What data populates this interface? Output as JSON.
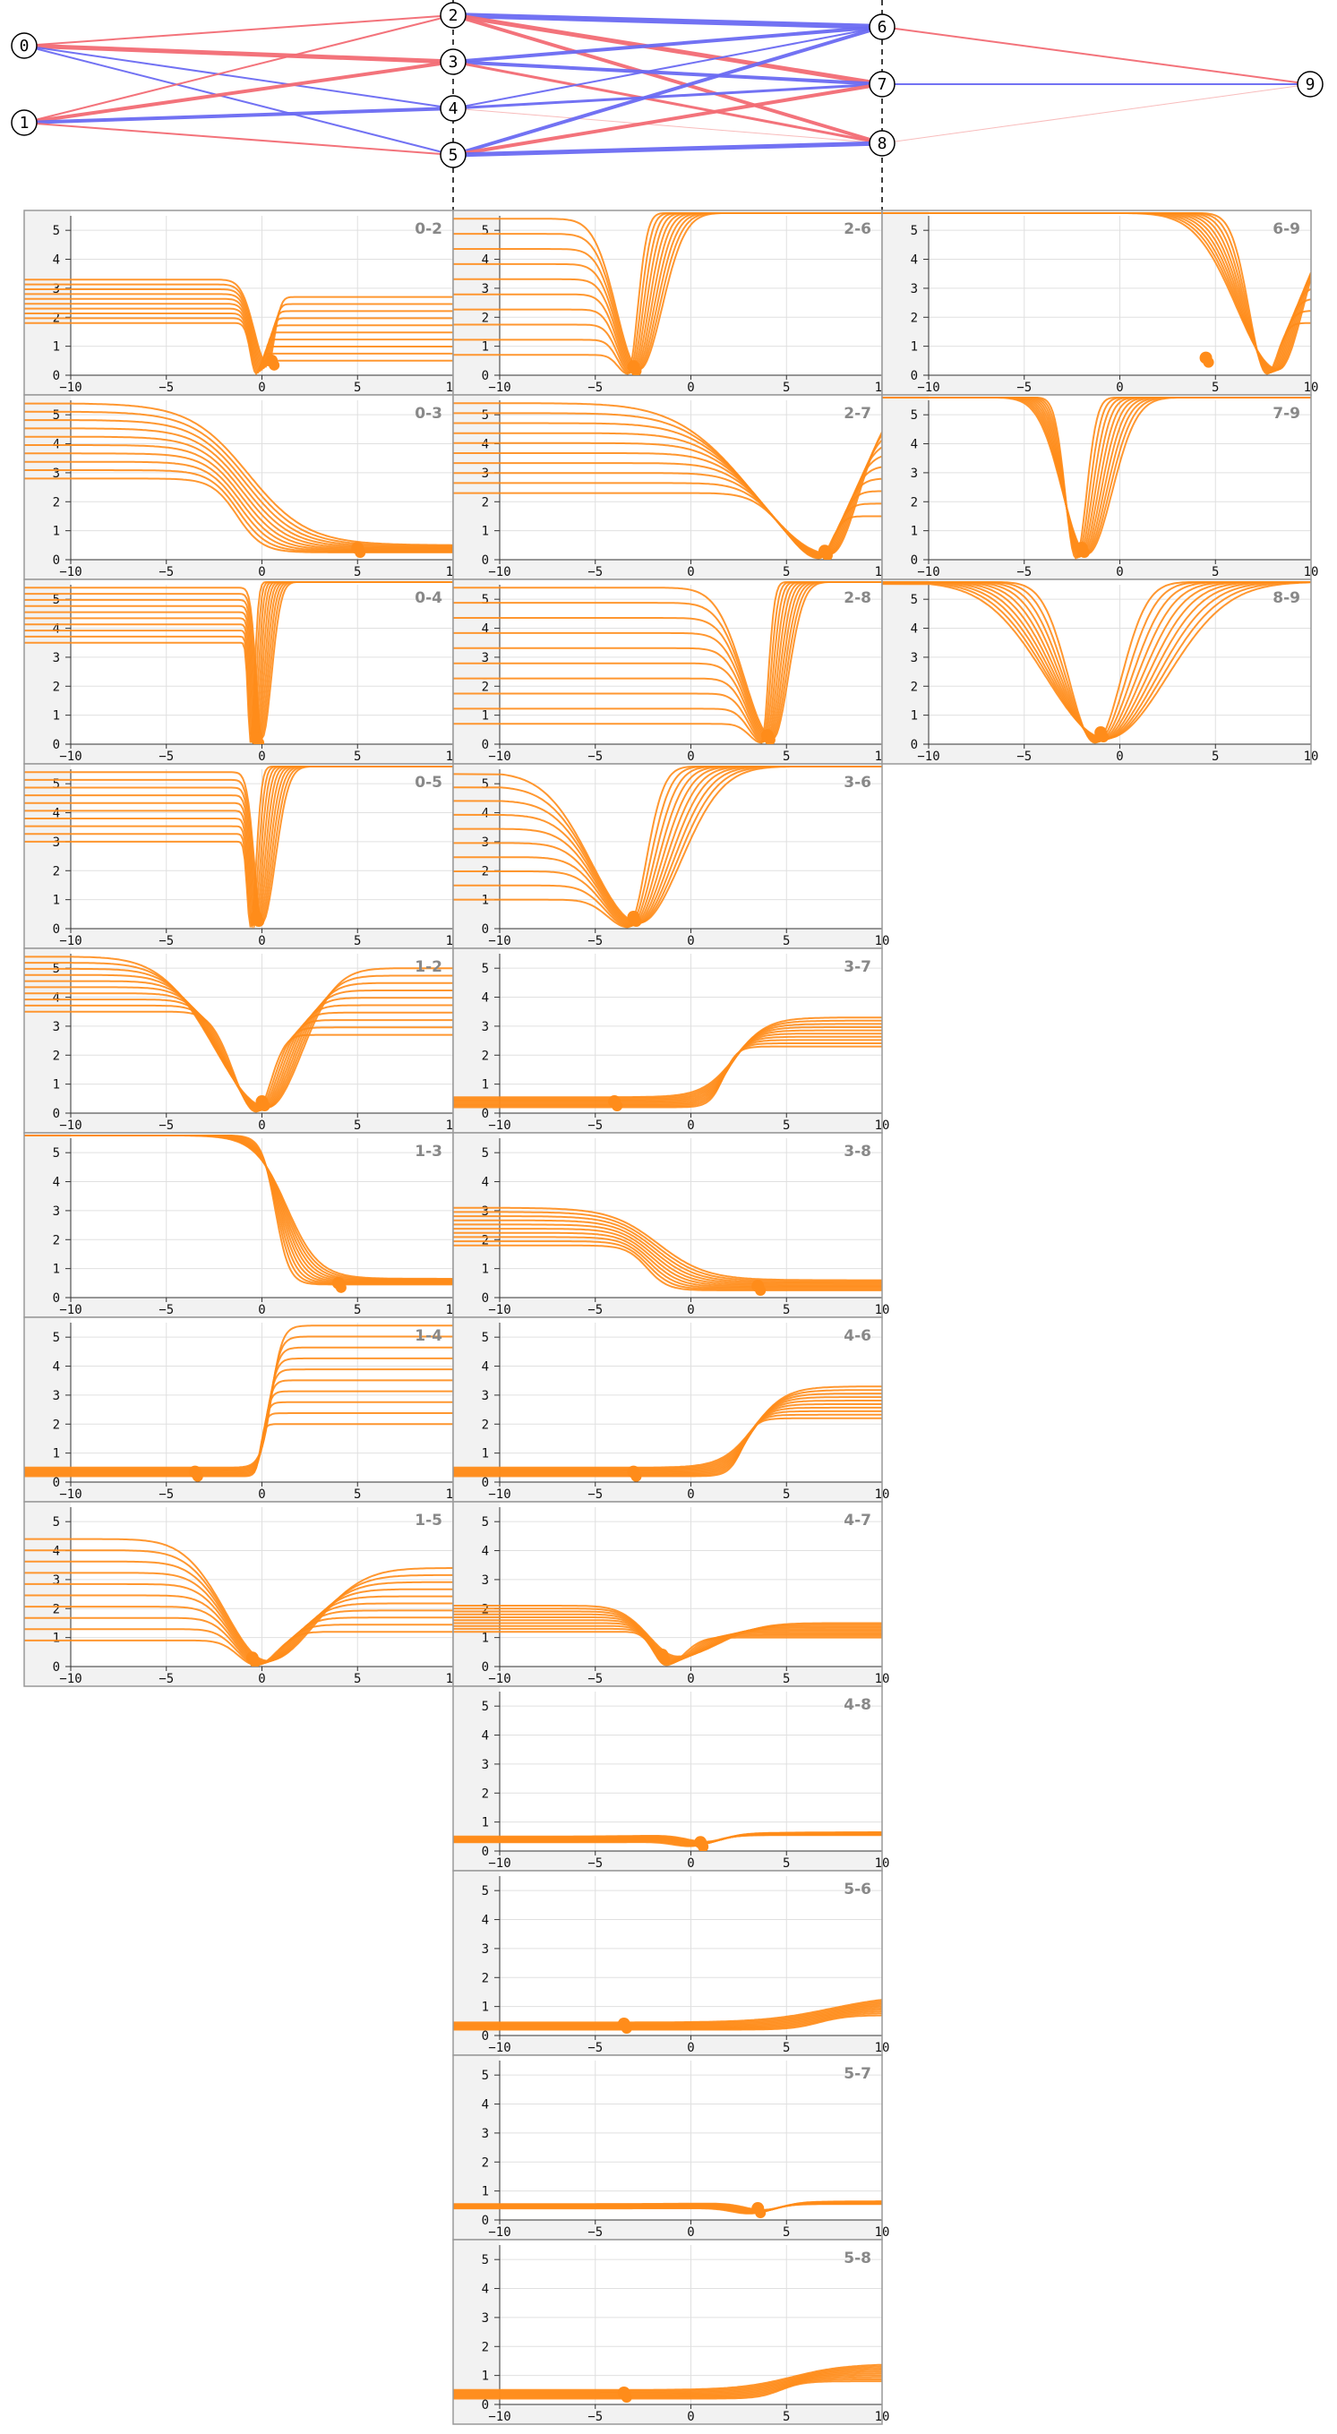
{
  "chart_data": {
    "type": "line",
    "title": "",
    "network": {
      "nodes": [
        "0",
        "1",
        "2",
        "3",
        "4",
        "5",
        "6",
        "7",
        "8",
        "9"
      ],
      "edges": [
        {
          "from": "0",
          "to": "2",
          "color": "#f26b74",
          "weight": 2
        },
        {
          "from": "0",
          "to": "3",
          "color": "#f26b74",
          "weight": 5
        },
        {
          "from": "0",
          "to": "4",
          "color": "#6a6af2",
          "weight": 2
        },
        {
          "from": "0",
          "to": "5",
          "color": "#6a6af2",
          "weight": 2
        },
        {
          "from": "1",
          "to": "2",
          "color": "#f26b74",
          "weight": 2
        },
        {
          "from": "1",
          "to": "3",
          "color": "#f26b74",
          "weight": 4
        },
        {
          "from": "1",
          "to": "4",
          "color": "#6a6af2",
          "weight": 4
        },
        {
          "from": "1",
          "to": "5",
          "color": "#f26b74",
          "weight": 2
        },
        {
          "from": "2",
          "to": "6",
          "color": "#6a6af2",
          "weight": 6
        },
        {
          "from": "2",
          "to": "7",
          "color": "#f26b74",
          "weight": 5
        },
        {
          "from": "2",
          "to": "8",
          "color": "#f26b74",
          "weight": 4
        },
        {
          "from": "3",
          "to": "6",
          "color": "#6a6af2",
          "weight": 4
        },
        {
          "from": "3",
          "to": "7",
          "color": "#6a6af2",
          "weight": 4
        },
        {
          "from": "3",
          "to": "8",
          "color": "#f26b74",
          "weight": 3
        },
        {
          "from": "4",
          "to": "6",
          "color": "#6a6af2",
          "weight": 2
        },
        {
          "from": "4",
          "to": "7",
          "color": "#6a6af2",
          "weight": 3
        },
        {
          "from": "4",
          "to": "8",
          "color": "#f8b8b8",
          "weight": 1
        },
        {
          "from": "5",
          "to": "6",
          "color": "#6a6af2",
          "weight": 4
        },
        {
          "from": "5",
          "to": "7",
          "color": "#f26b74",
          "weight": 4
        },
        {
          "from": "5",
          "to": "8",
          "color": "#6a6af2",
          "weight": 5
        },
        {
          "from": "6",
          "to": "9",
          "color": "#f26b74",
          "weight": 2
        },
        {
          "from": "7",
          "to": "9",
          "color": "#6a6af2",
          "weight": 2
        },
        {
          "from": "8",
          "to": "9",
          "color": "#f8b8b8",
          "weight": 1
        }
      ]
    },
    "panels": [
      {
        "label": "0-2",
        "col": 0,
        "row": 0,
        "kind": "bathtub",
        "center": 0,
        "left": [
          1.8,
          3.3
        ],
        "right": [
          0.5,
          2.7
        ],
        "sl": 0.7,
        "sr": 0.35,
        "marker": [
          0.5,
          0.5
        ]
      },
      {
        "label": "0-3",
        "col": 0,
        "row": 1,
        "kind": "drop",
        "center": -1,
        "left": [
          2.8,
          5.4
        ],
        "right": [
          0.25,
          0.5
        ],
        "sl": 2.2,
        "marker": [
          5,
          0.4
        ]
      },
      {
        "label": "0-4",
        "col": 0,
        "row": 2,
        "kind": "vee",
        "center": -0.3,
        "left": [
          3.5,
          5.4
        ],
        "right": [
          5.6,
          5.6
        ],
        "sl": 0.3,
        "sr": 0.5,
        "marker": [
          -0.3,
          0.2
        ]
      },
      {
        "label": "0-5",
        "col": 0,
        "row": 3,
        "kind": "vee",
        "center": -0.3,
        "left": [
          3.0,
          5.4
        ],
        "right": [
          5.6,
          5.6
        ],
        "sl": 0.4,
        "sr": 0.7,
        "marker": [
          -0.3,
          0.4
        ]
      },
      {
        "label": "1-2",
        "col": 0,
        "row": 4,
        "kind": "vee",
        "center": 0,
        "left": [
          3.5,
          5.4
        ],
        "right": [
          2.7,
          5.0
        ],
        "sl": 2.8,
        "sr": 1.8,
        "marker": [
          0,
          0.4
        ]
      },
      {
        "label": "1-3",
        "col": 0,
        "row": 5,
        "kind": "drop",
        "center": 1,
        "left": [
          5.6,
          5.6
        ],
        "right": [
          0.45,
          0.65
        ],
        "sl": 1.2,
        "marker": [
          4,
          0.5
        ]
      },
      {
        "label": "1-4",
        "col": 0,
        "row": 6,
        "kind": "rise",
        "center": 0.2,
        "left": [
          0.2,
          0.5
        ],
        "right": [
          2.0,
          5.4
        ],
        "sl": 0.4,
        "marker": [
          -3.5,
          0.35
        ]
      },
      {
        "label": "1-5",
        "col": 0,
        "row": 7,
        "kind": "vee",
        "center": 0,
        "left": [
          0.9,
          4.4
        ],
        "right": [
          1.2,
          3.4
        ],
        "sl": 2.2,
        "sr": 2.5,
        "marker": [
          -0.5,
          0.3
        ]
      },
      {
        "label": "2-6",
        "col": 1,
        "row": 0,
        "kind": "vee",
        "center": -3,
        "left": [
          0.7,
          5.4
        ],
        "right": [
          5.6,
          5.6
        ],
        "sl": 1.2,
        "sr": 1.2,
        "marker": [
          -3,
          0.3
        ]
      },
      {
        "label": "2-7",
        "col": 1,
        "row": 1,
        "kind": "vee",
        "center": 7,
        "left": [
          2.3,
          5.4
        ],
        "right": [
          1.5,
          5.4
        ],
        "sl": 4,
        "sr": 1.5,
        "marker": [
          7,
          0.3
        ]
      },
      {
        "label": "2-8",
        "col": 1,
        "row": 2,
        "kind": "vee",
        "center": 4,
        "left": [
          0.7,
          5.4
        ],
        "right": [
          5.6,
          5.6
        ],
        "sl": 1.5,
        "sr": 0.8,
        "marker": [
          4,
          0.3
        ]
      },
      {
        "label": "3-6",
        "col": 1,
        "row": 3,
        "kind": "vee",
        "center": -3,
        "left": [
          1.0,
          5.4
        ],
        "right": [
          5.6,
          5.6
        ],
        "sl": 2.5,
        "sr": 2.2,
        "marker": [
          -3,
          0.4
        ]
      },
      {
        "label": "3-7",
        "col": 1,
        "row": 4,
        "kind": "rise",
        "center": 2,
        "left": [
          0.2,
          0.55
        ],
        "right": [
          2.3,
          3.3
        ],
        "sl": 1.2,
        "marker": [
          -4,
          0.4
        ]
      },
      {
        "label": "3-8",
        "col": 1,
        "row": 5,
        "kind": "drop",
        "center": -2,
        "left": [
          1.8,
          3.1
        ],
        "right": [
          0.25,
          0.6
        ],
        "sl": 1.8,
        "marker": [
          3.5,
          0.4
        ]
      },
      {
        "label": "4-6",
        "col": 1,
        "row": 6,
        "kind": "rise",
        "center": 3,
        "left": [
          0.2,
          0.5
        ],
        "right": [
          2.2,
          3.3
        ],
        "sl": 1.2,
        "marker": [
          -3,
          0.35
        ]
      },
      {
        "label": "4-7",
        "col": 1,
        "row": 7,
        "kind": "bathtub",
        "center": -1,
        "left": [
          1.2,
          2.1
        ],
        "right": [
          1.0,
          1.5
        ],
        "sl": 1.5,
        "sr": 2.2,
        "marker": [
          -1.5,
          0.4
        ]
      },
      {
        "label": "4-8",
        "col": 1,
        "row": 8,
        "kind": "dip",
        "center": 0.5,
        "left": [
          0.3,
          0.5
        ],
        "right": [
          0.55,
          0.65
        ],
        "sl": 1.5,
        "marker": [
          0.5,
          0.3
        ]
      },
      {
        "label": "5-6",
        "col": 1,
        "row": 9,
        "kind": "rise",
        "center": 7,
        "left": [
          0.2,
          0.45
        ],
        "right": [
          0.7,
          1.4
        ],
        "sl": 2.5,
        "marker": [
          -3.5,
          0.4
        ]
      },
      {
        "label": "5-7",
        "col": 1,
        "row": 10,
        "kind": "dip",
        "center": 3.5,
        "left": [
          0.4,
          0.55
        ],
        "right": [
          0.55,
          0.65
        ],
        "sl": 1.5,
        "marker": [
          3.5,
          0.4
        ]
      },
      {
        "label": "5-8",
        "col": 1,
        "row": 11,
        "kind": "rise",
        "center": 5,
        "left": [
          0.2,
          0.5
        ],
        "right": [
          0.8,
          1.4
        ],
        "sl": 2,
        "marker": [
          -3.5,
          0.4
        ]
      },
      {
        "label": "6-9",
        "col": 2,
        "row": 0,
        "kind": "vee",
        "center": 8,
        "left": [
          5.6,
          5.6
        ],
        "right": [
          1.8,
          5.6
        ],
        "sl": 2.2,
        "sr": 1.3,
        "marker": [
          4.5,
          0.6
        ]
      },
      {
        "label": "7-9",
        "col": 2,
        "row": 1,
        "kind": "vee",
        "center": -2,
        "left": [
          5.6,
          5.6
        ],
        "right": [
          5.6,
          5.6
        ],
        "sl": 1.3,
        "sr": 1.3,
        "marker": [
          -2,
          0.4
        ]
      },
      {
        "label": "8-9",
        "col": 2,
        "row": 2,
        "kind": "vee",
        "center": -1,
        "left": [
          5.6,
          5.6
        ],
        "right": [
          5.6,
          5.6
        ],
        "sl": 3.2,
        "sr": 3.2,
        "marker": [
          -1,
          0.4
        ]
      }
    ],
    "x_ticks": [
      "−10",
      "−5",
      "0",
      "5",
      "10"
    ],
    "y_ticks": [
      "0",
      "1",
      "2",
      "3",
      "4",
      "5"
    ],
    "xlim": [
      -10,
      10
    ],
    "ylim": [
      0,
      5.5
    ],
    "n_curves": 10,
    "line_color": "#ff8c1a"
  }
}
